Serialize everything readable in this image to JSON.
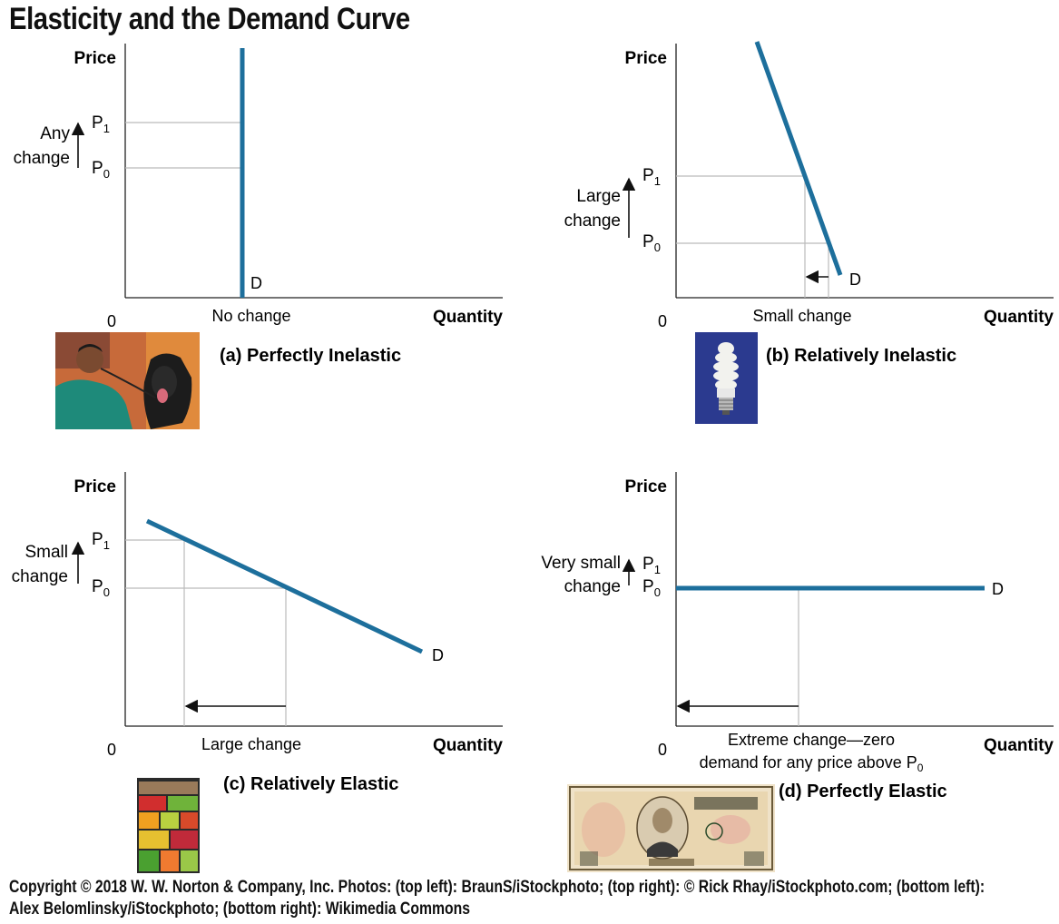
{
  "title": "Elasticity and the Demand Curve",
  "axes": {
    "price": "Price",
    "quantity": "Quantity",
    "origin": "0"
  },
  "labels": {
    "p": "P",
    "p1_sub": "1",
    "p0_sub": "0",
    "demand": "D"
  },
  "panels": [
    {
      "id": "a",
      "caption": "(a) Perfectly Inelastic",
      "price_change": [
        "Any",
        "change"
      ],
      "quantity_change": [
        "No change"
      ]
    },
    {
      "id": "b",
      "caption": "(b) Relatively Inelastic",
      "price_change": [
        "Large",
        "change"
      ],
      "quantity_change": [
        "Small change"
      ]
    },
    {
      "id": "c",
      "caption": "(c) Relatively Elastic",
      "price_change": [
        "Small",
        "change"
      ],
      "quantity_change": [
        "Large change"
      ]
    },
    {
      "id": "d",
      "caption": "(d) Perfectly Elastic",
      "price_change": [
        "Very small",
        "change"
      ],
      "quantity_change": [
        "Extreme change—zero",
        "demand for any price above P"
      ]
    }
  ],
  "credit": "Copyright © 2018 W. W. Norton & Company, Inc. Photos: (top left): BraunS/iStockphoto; (top right): © Rick Rhay/iStockphoto.com; (bottom left): Alex Belomlinsky/iStockphoto; (bottom right): Wikimedia Commons",
  "colors": {
    "curve": "#1d6f9c",
    "grid": "#bbbbbb",
    "axis": "#222222"
  }
}
